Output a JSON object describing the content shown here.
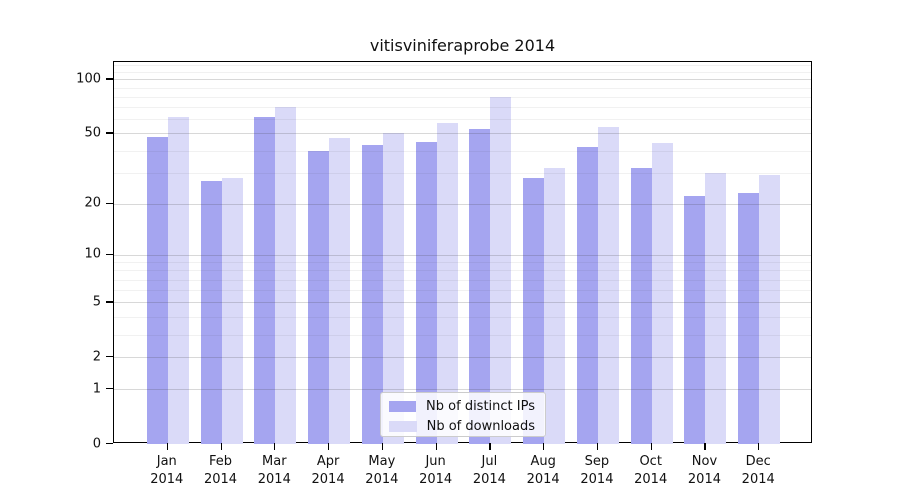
{
  "chart_data": {
    "type": "bar",
    "title": "vitisviniferaprobe 2014",
    "categories": [
      "Jan 2014",
      "Feb 2014",
      "Mar 2014",
      "Apr 2014",
      "May 2014",
      "Jun 2014",
      "Jul 2014",
      "Aug 2014",
      "Sep 2014",
      "Oct 2014",
      "Nov 2014",
      "Dec 2014"
    ],
    "x_tick_line1": [
      "Jan",
      "Feb",
      "Mar",
      "Apr",
      "May",
      "Jun",
      "Jul",
      "Aug",
      "Sep",
      "Oct",
      "Nov",
      "Dec"
    ],
    "x_tick_line2": [
      "2014",
      "2014",
      "2014",
      "2014",
      "2014",
      "2014",
      "2014",
      "2014",
      "2014",
      "2014",
      "2014",
      "2014"
    ],
    "series": [
      {
        "name": "Nb of distinct IPs",
        "color": "#a5a5f0",
        "values": [
          48,
          27,
          62,
          40,
          43,
          45,
          53,
          28,
          42,
          32,
          22,
          23
        ]
      },
      {
        "name": "Nb of downloads",
        "color": "#dadaf8",
        "values": [
          62,
          28,
          70,
          47,
          50,
          57,
          80,
          32,
          54,
          44,
          30,
          29
        ]
      }
    ],
    "xlabel": "",
    "ylabel": "",
    "y_scale": "log1p",
    "y_ticks": [
      0,
      1,
      2,
      5,
      10,
      20,
      50,
      100
    ],
    "y_minor_ticks": [
      3,
      4,
      6,
      7,
      8,
      9,
      30,
      40,
      60,
      70,
      80,
      90,
      110,
      120
    ],
    "ylim": [
      0,
      125
    ],
    "grid": true,
    "legend_position": "bottom-center"
  },
  "layout_colors": {
    "grid_major": "#d4d4d4",
    "grid_minor": "#ededed",
    "axis": "#000000",
    "background": "#ffffff"
  }
}
